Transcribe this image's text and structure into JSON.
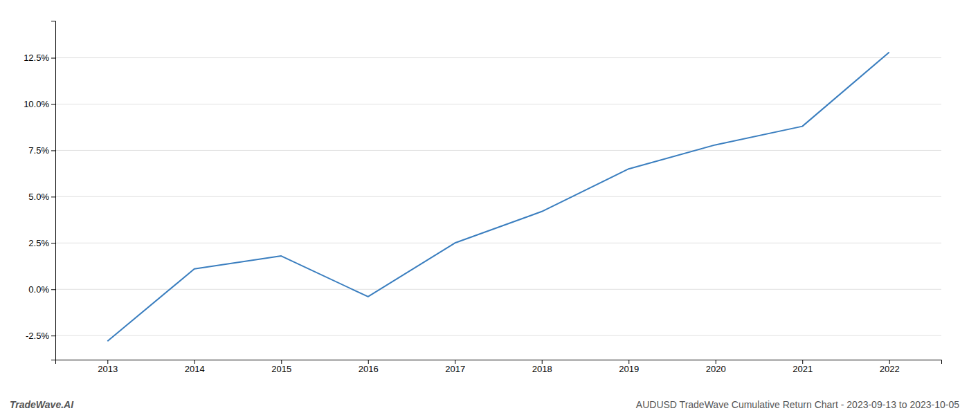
{
  "chart_data": {
    "type": "line",
    "x": [
      2013,
      2014,
      2015,
      2016,
      2017,
      2018,
      2019,
      2020,
      2021,
      2022
    ],
    "values": [
      -0.028,
      0.011,
      0.018,
      -0.004,
      0.025,
      0.042,
      0.065,
      0.078,
      0.088,
      0.128
    ],
    "color": "#3a7ebf",
    "xlim": [
      2012.4,
      2022.6
    ],
    "xticks": [
      2013,
      2014,
      2015,
      2016,
      2017,
      2018,
      2019,
      2020,
      2021,
      2022
    ],
    "ylim": [
      -0.038,
      0.145
    ],
    "yticks": [
      {
        "value": -0.025,
        "label": "-2.5%"
      },
      {
        "value": 0.0,
        "label": "0.0%"
      },
      {
        "value": 0.025,
        "label": "2.5%"
      },
      {
        "value": 0.05,
        "label": "5.0%"
      },
      {
        "value": 0.075,
        "label": "7.5%"
      },
      {
        "value": 0.1,
        "label": "10.0%"
      },
      {
        "value": 0.125,
        "label": "12.5%"
      }
    ],
    "grid": true,
    "annotations": [
      "TradeWave.AI",
      "AUDUSD TradeWave Cumulative Return Chart - 2023-09-13 to 2023-10-05"
    ]
  }
}
